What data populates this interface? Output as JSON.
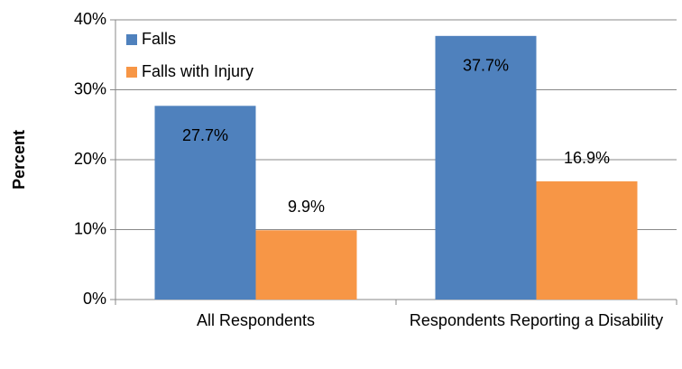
{
  "chart_data": {
    "type": "bar",
    "y_label": "Percent",
    "categories": [
      "All Respondents",
      "Respondents Reporting a Disability"
    ],
    "series": [
      {
        "name": "Falls",
        "color": "#4f81bd",
        "values": [
          27.7,
          37.7
        ],
        "value_labels": [
          "27.7%",
          "37.7%"
        ]
      },
      {
        "name": "Falls with Injury",
        "color": "#f79646",
        "values": [
          9.9,
          16.9
        ],
        "value_labels": [
          "9.9%",
          "16.9%"
        ]
      }
    ],
    "ylim": [
      0,
      40
    ],
    "yticks": [
      {
        "value": 0,
        "label": "0%"
      },
      {
        "value": 10,
        "label": "10%"
      },
      {
        "value": 20,
        "label": "20%"
      },
      {
        "value": 30,
        "label": "30%"
      },
      {
        "value": 40,
        "label": "40%"
      }
    ],
    "grid": true,
    "legend": "top-left"
  }
}
